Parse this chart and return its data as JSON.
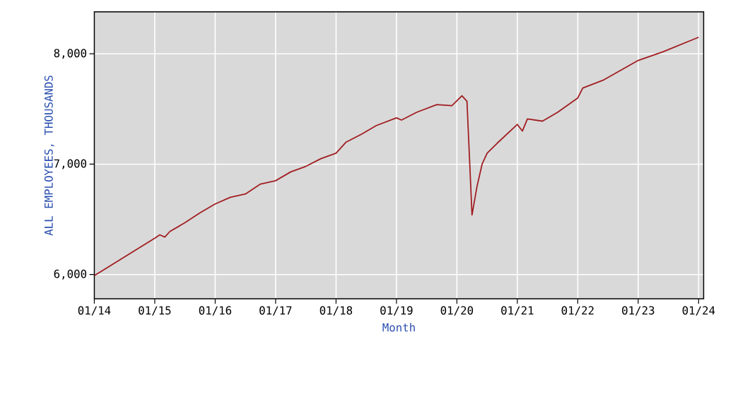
{
  "chart_data": {
    "type": "line",
    "xlabel": "Month",
    "ylabel": "ALL EMPLOYEES, THOUSANDS",
    "x": [
      "2014-01",
      "2014-07",
      "2015-01",
      "2015-02",
      "2015-03",
      "2015-04",
      "2015-07",
      "2015-10",
      "2016-01",
      "2016-04",
      "2016-07",
      "2016-10",
      "2017-01",
      "2017-04",
      "2017-07",
      "2017-10",
      "2018-01",
      "2018-03",
      "2018-06",
      "2018-09",
      "2019-01",
      "2019-02",
      "2019-05",
      "2019-09",
      "2019-12",
      "2020-02",
      "2020-03",
      "2020-04",
      "2020-05",
      "2020-06",
      "2020-07",
      "2020-09",
      "2021-01",
      "2021-02",
      "2021-03",
      "2021-06",
      "2021-09",
      "2022-01",
      "2022-02",
      "2022-06",
      "2023-01",
      "2023-06",
      "2024-01"
    ],
    "series": [
      {
        "color": "#a11d21",
        "values": [
          5990,
          6160,
          6330,
          6360,
          6340,
          6390,
          6470,
          6560,
          6640,
          6700,
          6730,
          6820,
          6850,
          6930,
          6980,
          7050,
          7100,
          7200,
          7270,
          7350,
          7420,
          7400,
          7470,
          7540,
          7530,
          7620,
          7570,
          6540,
          6800,
          7000,
          7100,
          7190,
          7360,
          7300,
          7410,
          7390,
          7470,
          7600,
          7690,
          7760,
          7940,
          8020,
          8150
        ]
      }
    ],
    "xlim": [
      "2014-01",
      "2024-02"
    ],
    "ylim": [
      5780,
      8380
    ],
    "xticks": [
      {
        "value": "2014-01",
        "label": "01/14"
      },
      {
        "value": "2015-01",
        "label": "01/15"
      },
      {
        "value": "2016-01",
        "label": "01/16"
      },
      {
        "value": "2017-01",
        "label": "01/17"
      },
      {
        "value": "2018-01",
        "label": "01/18"
      },
      {
        "value": "2019-01",
        "label": "01/19"
      },
      {
        "value": "2020-01",
        "label": "01/20"
      },
      {
        "value": "2021-01",
        "label": "01/21"
      },
      {
        "value": "2022-01",
        "label": "01/22"
      },
      {
        "value": "2023-01",
        "label": "01/23"
      },
      {
        "value": "2024-01",
        "label": "01/24"
      }
    ],
    "yticks": [
      {
        "value": 6000,
        "label": "6,000"
      },
      {
        "value": 7000,
        "label": "7,000"
      },
      {
        "value": 8000,
        "label": "8,000"
      }
    ],
    "grid": true
  }
}
